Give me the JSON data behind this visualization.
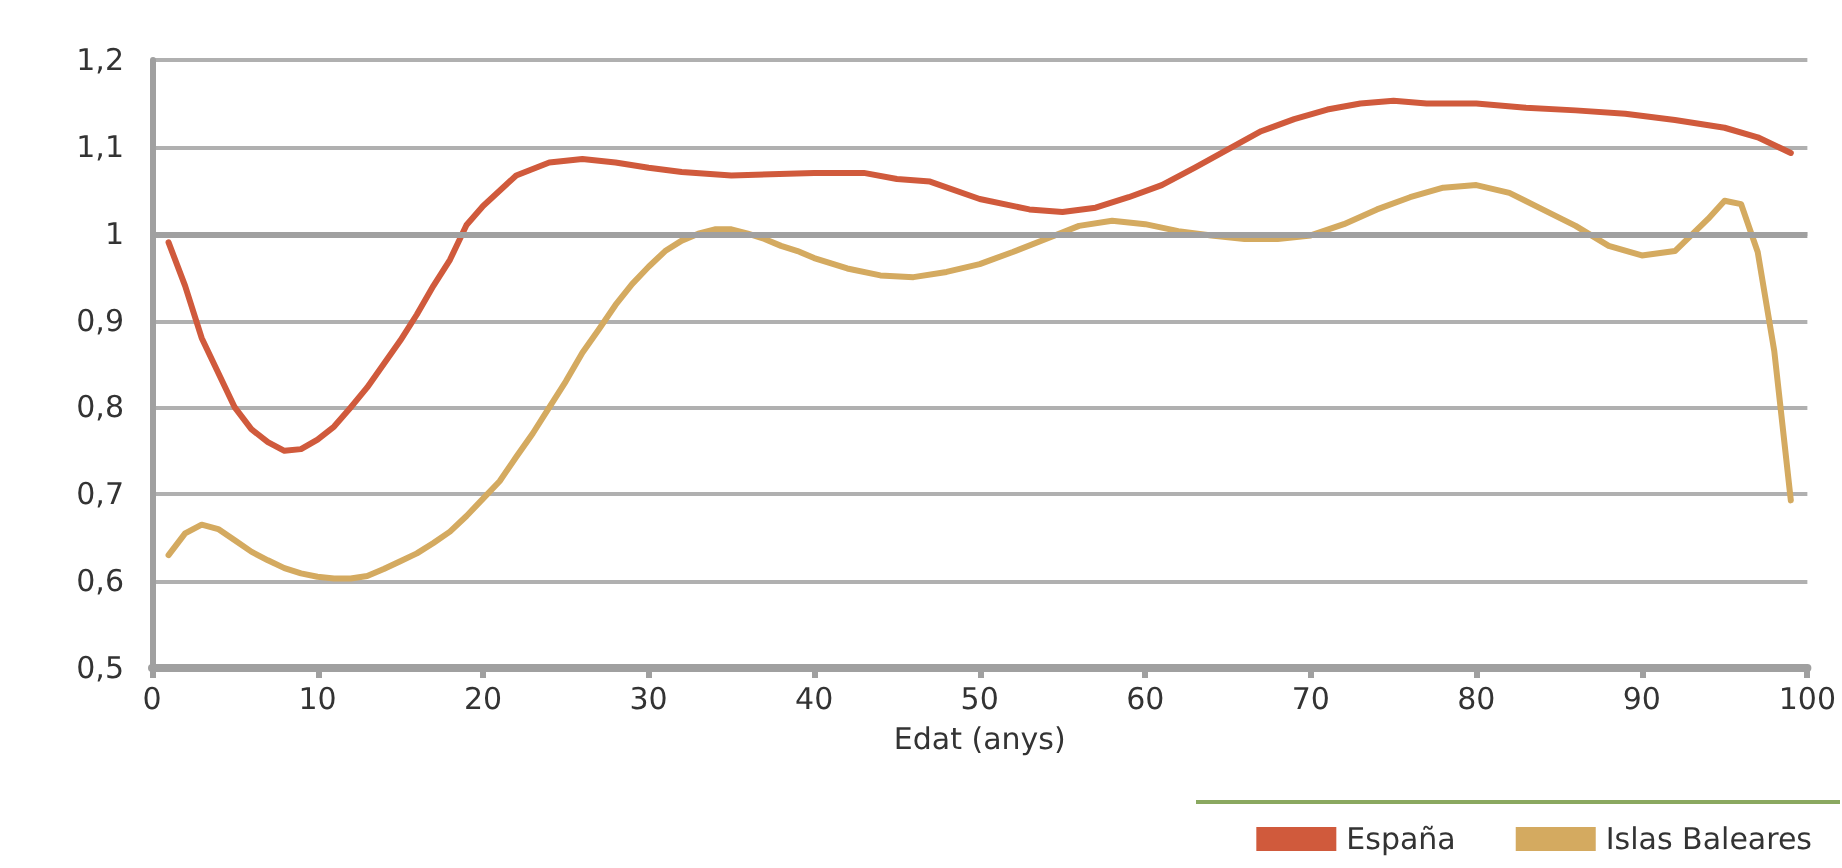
{
  "chart_data": {
    "type": "line",
    "xlabel": "Edat (anys)",
    "xlim": [
      0,
      100
    ],
    "xticks": [
      0,
      10,
      20,
      30,
      40,
      50,
      60,
      70,
      80,
      90,
      100
    ],
    "ylim": [
      0.5,
      1.2
    ],
    "yticks": [
      {
        "value": 0.5,
        "label": "0,5"
      },
      {
        "value": 0.6,
        "label": "0,6"
      },
      {
        "value": 0.7,
        "label": "0,7"
      },
      {
        "value": 0.8,
        "label": "0,8"
      },
      {
        "value": 0.9,
        "label": "0,9"
      },
      {
        "value": 1,
        "label": "1"
      },
      {
        "value": 1.1,
        "label": "1,1"
      },
      {
        "value": 1.2,
        "label": "1,2"
      }
    ],
    "grid": "y",
    "legend": "bottom right",
    "marker": "none",
    "line_style": "solid",
    "ref_lines": [
      {
        "axis": "y",
        "value": 1,
        "color": "#a0a0a0"
      }
    ],
    "series": [
      {
        "name": "España",
        "color": "#d05a3c",
        "x": [
          1,
          2,
          3,
          4,
          5,
          6,
          7,
          8,
          9,
          10,
          11,
          12,
          13,
          14,
          15,
          16,
          17,
          18,
          19,
          20,
          22,
          24,
          26,
          28,
          30,
          32,
          35,
          40,
          43,
          45,
          47,
          50,
          53,
          55,
          57,
          59,
          61,
          63,
          65,
          67,
          69,
          71,
          73,
          75,
          77,
          80,
          83,
          86,
          89,
          92,
          95,
          97,
          99
        ],
        "values": [
          0.99,
          0.94,
          0.88,
          0.84,
          0.8,
          0.775,
          0.76,
          0.75,
          0.752,
          0.763,
          0.778,
          0.8,
          0.823,
          0.85,
          0.877,
          0.907,
          0.94,
          0.97,
          1.01,
          1.032,
          1.067,
          1.082,
          1.086,
          1.082,
          1.076,
          1.071,
          1.067,
          1.07,
          1.07,
          1.063,
          1.06,
          1.04,
          1.028,
          1.025,
          1.03,
          1.042,
          1.056,
          1.076,
          1.097,
          1.118,
          1.132,
          1.143,
          1.15,
          1.153,
          1.15,
          1.15,
          1.145,
          1.142,
          1.138,
          1.131,
          1.122,
          1.111,
          1.093
        ]
      },
      {
        "name": "Islas Baleares",
        "color": "#d4aa60",
        "x": [
          1,
          2,
          3,
          4,
          5,
          6,
          7,
          8,
          9,
          10,
          11,
          12,
          13,
          14,
          15,
          16,
          17,
          18,
          19,
          20,
          21,
          22,
          23,
          24,
          25,
          26,
          27,
          28,
          29,
          30,
          31,
          32,
          33,
          34,
          35,
          36,
          37,
          38,
          39,
          40,
          42,
          44,
          46,
          48,
          50,
          52,
          54,
          56,
          58,
          60,
          62,
          64,
          66,
          68,
          70,
          72,
          74,
          76,
          78,
          80,
          82,
          84,
          86,
          88,
          90,
          92,
          94,
          95,
          96,
          97,
          98,
          99
        ],
        "values": [
          0.63,
          0.655,
          0.665,
          0.66,
          0.647,
          0.634,
          0.624,
          0.615,
          0.609,
          0.605,
          0.603,
          0.603,
          0.606,
          0.614,
          0.623,
          0.632,
          0.644,
          0.657,
          0.675,
          0.695,
          0.715,
          0.743,
          0.77,
          0.8,
          0.83,
          0.863,
          0.89,
          0.918,
          0.942,
          0.962,
          0.98,
          0.992,
          1.0,
          1.005,
          1.005,
          1.0,
          0.994,
          0.986,
          0.98,
          0.972,
          0.96,
          0.952,
          0.95,
          0.956,
          0.965,
          0.979,
          0.994,
          1.009,
          1.015,
          1.011,
          1.003,
          0.998,
          0.994,
          0.994,
          0.998,
          1.011,
          1.028,
          1.042,
          1.053,
          1.056,
          1.047,
          1.028,
          1.009,
          0.986,
          0.975,
          0.98,
          1.017,
          1.038,
          1.034,
          0.979,
          0.865,
          0.693
        ]
      }
    ]
  }
}
